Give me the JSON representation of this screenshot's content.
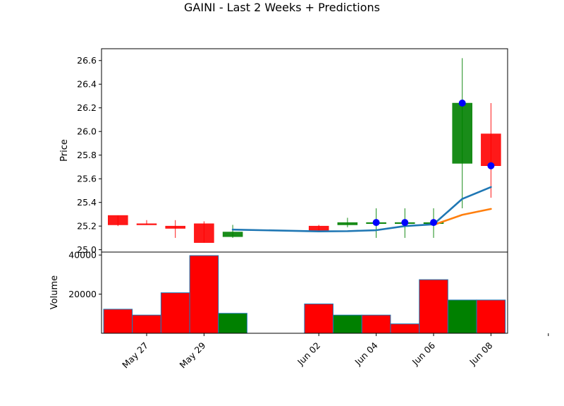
{
  "title": "GAINI - Last 2 Weeks + Predictions",
  "chart_data": [
    {
      "type": "candlestick",
      "ylabel": "Price",
      "ylim": [
        24.98,
        26.7
      ],
      "yticks": [
        25.0,
        25.2,
        25.4,
        25.6,
        25.8,
        26.0,
        26.2,
        26.4,
        26.6
      ],
      "ytick_labels": [
        "25.0",
        "25.2",
        "25.4",
        "25.6",
        "25.8",
        "26.0",
        "26.2",
        "26.4",
        "26.6"
      ],
      "up_color": "#008000",
      "down_color": "#ff0000",
      "candles": [
        {
          "date": "2025-05-26",
          "open": 25.29,
          "high": 25.29,
          "low": 25.2,
          "close": 25.21
        },
        {
          "date": "2025-05-27",
          "open": 25.22,
          "high": 25.25,
          "low": 25.21,
          "close": 25.21
        },
        {
          "date": "2025-05-28",
          "open": 25.2,
          "high": 25.25,
          "low": 25.1,
          "close": 25.18
        },
        {
          "date": "2025-05-29",
          "open": 25.22,
          "high": 25.24,
          "low": 25.06,
          "close": 25.06
        },
        {
          "date": "2025-05-30",
          "open": 25.11,
          "high": 25.21,
          "low": 25.1,
          "close": 25.15
        },
        {
          "date": "2025-06-02",
          "open": 25.2,
          "high": 25.21,
          "low": 25.16,
          "close": 25.16
        },
        {
          "date": "2025-06-03",
          "open": 25.21,
          "high": 25.27,
          "low": 25.19,
          "close": 25.23
        },
        {
          "date": "2025-06-04",
          "open": 25.23,
          "high": 25.35,
          "low": 25.1,
          "close": 25.23
        },
        {
          "date": "2025-06-05",
          "open": 25.23,
          "high": 25.35,
          "low": 25.1,
          "close": 25.23
        },
        {
          "date": "2025-06-06",
          "open": 25.23,
          "high": 25.35,
          "low": 25.1,
          "close": 25.23
        },
        {
          "date": "2025-06-07",
          "open": 25.73,
          "high": 26.62,
          "low": 25.35,
          "close": 26.24
        },
        {
          "date": "2025-06-08",
          "open": 25.98,
          "high": 26.24,
          "low": 25.44,
          "close": 25.71
        }
      ],
      "prediction_points": [
        {
          "date": "2025-06-04",
          "value": 25.23
        },
        {
          "date": "2025-06-05",
          "value": 25.23
        },
        {
          "date": "2025-06-06",
          "value": 25.23
        },
        {
          "date": "2025-06-07",
          "value": 26.24
        },
        {
          "date": "2025-06-08",
          "value": 25.71
        }
      ],
      "prediction_color": "#0000ff",
      "series": [
        {
          "color": "#1f77b4",
          "points": [
            {
              "date": "2025-05-30",
              "value": 25.17
            },
            {
              "date": "2025-06-02",
              "value": 25.155
            },
            {
              "date": "2025-06-03",
              "value": 25.157
            },
            {
              "date": "2025-06-04",
              "value": 25.165
            },
            {
              "date": "2025-06-05",
              "value": 25.2
            },
            {
              "date": "2025-06-06",
              "value": 25.215
            },
            {
              "date": "2025-06-07",
              "value": 25.43
            },
            {
              "date": "2025-06-08",
              "value": 25.53
            }
          ]
        },
        {
          "color": "#ff7f0e",
          "points": [
            {
              "date": "2025-06-06",
              "value": 25.21
            },
            {
              "date": "2025-06-07",
              "value": 25.295
            },
            {
              "date": "2025-06-08",
              "value": 25.345
            }
          ]
        }
      ]
    },
    {
      "type": "bar",
      "ylabel": "Volume",
      "ylim": [
        0,
        41500
      ],
      "yticks": [
        20000,
        40000
      ],
      "ytick_labels": [
        "20000",
        "40000"
      ],
      "bar_edge_color": "#1f77b4",
      "bars": [
        {
          "date": "2025-05-26",
          "value": 12300,
          "color": "#ff0000"
        },
        {
          "date": "2025-05-27",
          "value": 9300,
          "color": "#ff0000"
        },
        {
          "date": "2025-05-28",
          "value": 20700,
          "color": "#ff0000"
        },
        {
          "date": "2025-05-29",
          "value": 39700,
          "color": "#ff0000"
        },
        {
          "date": "2025-05-30",
          "value": 10200,
          "color": "#008000"
        },
        {
          "date": "2025-06-02",
          "value": 15000,
          "color": "#ff0000"
        },
        {
          "date": "2025-06-03",
          "value": 9300,
          "color": "#008000"
        },
        {
          "date": "2025-06-04",
          "value": 9300,
          "color": "#ff0000"
        },
        {
          "date": "2025-06-05",
          "value": 4800,
          "color": "#ff0000"
        },
        {
          "date": "2025-06-06",
          "value": 27400,
          "color": "#ff0000"
        },
        {
          "date": "2025-06-07",
          "value": 17000,
          "color": "#008000"
        },
        {
          "date": "2025-06-08",
          "value": 17000,
          "color": "#ff0000"
        }
      ]
    }
  ],
  "x_axis": {
    "ticks": [
      {
        "date": "2025-05-27",
        "label": "May 27"
      },
      {
        "date": "2025-05-29",
        "label": "May 29"
      },
      {
        "date": "2025-06-02",
        "label": "Jun 02"
      },
      {
        "date": "2025-06-04",
        "label": "Jun 04"
      },
      {
        "date": "2025-06-06",
        "label": "Jun 06"
      },
      {
        "date": "2025-06-08",
        "label": "Jun 08"
      },
      {
        "date": "2025-06-10",
        "label": ""
      }
    ]
  }
}
